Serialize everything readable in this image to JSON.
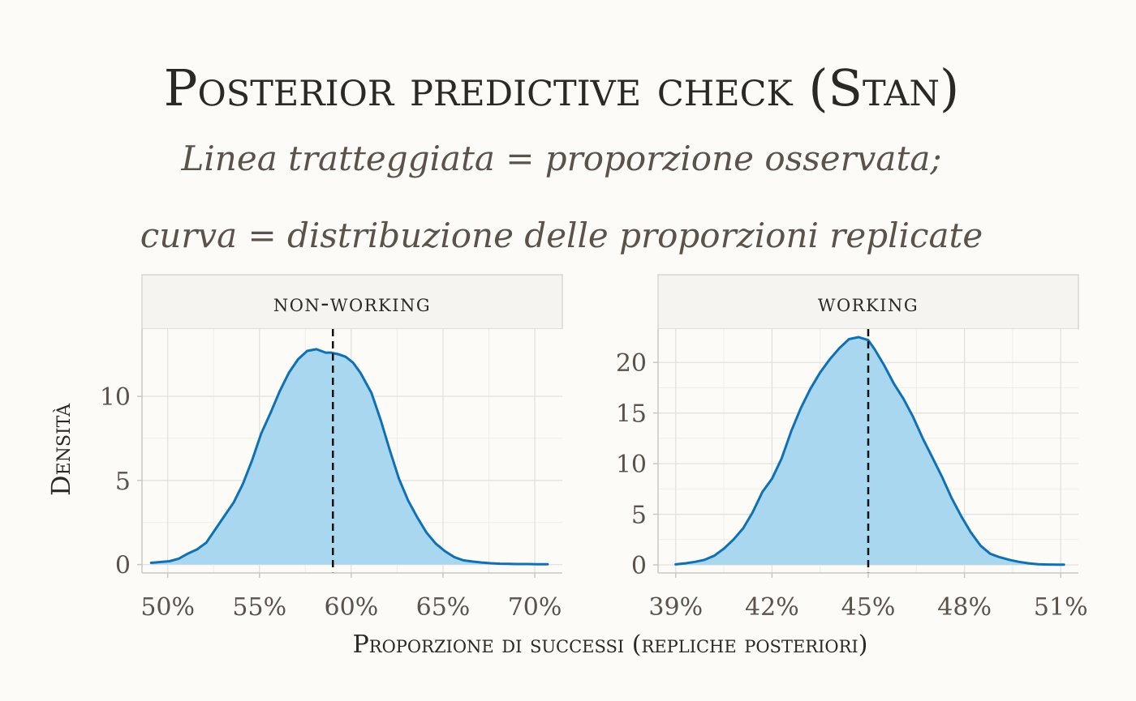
{
  "chart_data": {
    "type": "area",
    "title": "Posterior predictive check (Stan)",
    "subtitle_lines": [
      "Linea tratteggiata = proporzione osservata;",
      "curva = distribuzione delle proporzioni replicate"
    ],
    "xlabel": "Proporzione di successi (repliche posteriori)",
    "ylabel": "Densità",
    "colors": {
      "fill": "#a9d7f0",
      "line": "#0f71b3",
      "observed_line": "#111111",
      "strip_bg": "#f5f4f1",
      "grid": "#e3e1dd",
      "border": "#c9c7c3"
    },
    "panels": [
      {
        "name": "non-working",
        "xlim": [
          0.486,
          0.715
        ],
        "ylim": [
          -0.5,
          14
        ],
        "xticks": [
          0.5,
          0.55,
          0.6,
          0.65,
          0.7
        ],
        "xtick_labels": [
          "50%",
          "55%",
          "60%",
          "65%",
          "70%"
        ],
        "yticks": [
          0,
          5,
          10
        ],
        "ytick_labels": [
          "0",
          "5",
          "10"
        ],
        "observed": 0.59,
        "density": {
          "x": [
            0.491,
            0.496,
            0.501,
            0.506,
            0.511,
            0.516,
            0.521,
            0.526,
            0.531,
            0.536,
            0.541,
            0.546,
            0.551,
            0.556,
            0.561,
            0.566,
            0.571,
            0.576,
            0.581,
            0.586,
            0.589,
            0.593,
            0.597,
            0.601,
            0.605,
            0.611,
            0.616,
            0.621,
            0.626,
            0.631,
            0.636,
            0.641,
            0.646,
            0.651,
            0.656,
            0.661,
            0.666,
            0.671,
            0.676,
            0.681,
            0.686,
            0.691,
            0.696,
            0.701,
            0.707
          ],
          "y": [
            0.1,
            0.15,
            0.2,
            0.35,
            0.65,
            0.9,
            1.3,
            2.1,
            2.9,
            3.7,
            4.8,
            6.2,
            7.8,
            9.0,
            10.3,
            11.4,
            12.2,
            12.7,
            12.8,
            12.6,
            12.6,
            12.5,
            12.35,
            12.0,
            11.4,
            10.2,
            8.6,
            6.8,
            5.1,
            3.8,
            2.8,
            1.9,
            1.25,
            0.8,
            0.45,
            0.25,
            0.18,
            0.12,
            0.08,
            0.05,
            0.04,
            0.03,
            0.03,
            0.02,
            0.02
          ]
        }
      },
      {
        "name": "working",
        "xlim": [
          0.3845,
          0.5155
        ],
        "ylim": [
          -0.8,
          23.3
        ],
        "xticks": [
          0.39,
          0.42,
          0.45,
          0.48,
          0.51
        ],
        "xtick_labels": [
          "39%",
          "42%",
          "45%",
          "48%",
          "51%"
        ],
        "yticks": [
          0,
          5,
          10,
          15,
          20
        ],
        "ytick_labels": [
          "0",
          "5",
          "10",
          "15",
          "20"
        ],
        "observed": 0.45,
        "density": {
          "x": [
            0.39,
            0.393,
            0.396,
            0.399,
            0.402,
            0.405,
            0.408,
            0.411,
            0.414,
            0.417,
            0.42,
            0.423,
            0.426,
            0.429,
            0.432,
            0.435,
            0.438,
            0.441,
            0.444,
            0.447,
            0.45,
            0.452,
            0.455,
            0.458,
            0.461,
            0.464,
            0.467,
            0.47,
            0.473,
            0.476,
            0.479,
            0.482,
            0.485,
            0.488,
            0.491,
            0.494,
            0.497,
            0.5,
            0.503,
            0.506,
            0.509,
            0.511
          ],
          "y": [
            0.05,
            0.15,
            0.3,
            0.5,
            0.9,
            1.6,
            2.5,
            3.6,
            5.2,
            7.2,
            8.5,
            10.5,
            13.2,
            15.5,
            17.4,
            19.0,
            20.3,
            21.4,
            22.3,
            22.5,
            22.2,
            21.3,
            19.7,
            17.9,
            16.4,
            14.6,
            12.5,
            10.6,
            8.7,
            6.6,
            4.8,
            3.2,
            1.9,
            1.1,
            0.75,
            0.5,
            0.3,
            0.15,
            0.06,
            0.03,
            0.02,
            0.02
          ]
        }
      }
    ]
  }
}
